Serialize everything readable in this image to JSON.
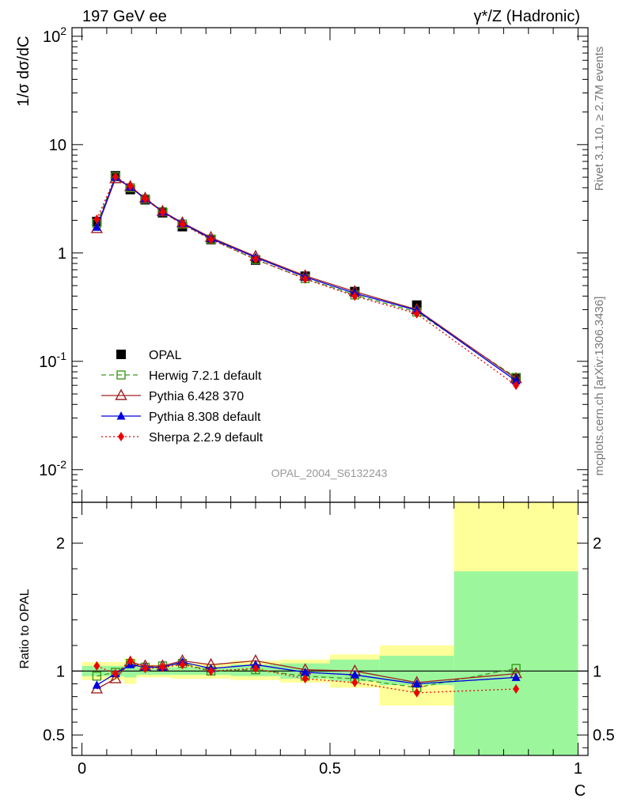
{
  "header": {
    "left": "197 GeV ee",
    "right": "γ*/Z (Hadronic)",
    "side_top": "Rivet 3.1.10, ≥ 2.7M events",
    "side_bottom": "mcplots.cern.ch [arXiv:1306.3436]",
    "analysis": "OPAL_2004_S6132243"
  },
  "colors": {
    "opal": "#000000",
    "herwig": "#3a9a1a",
    "pythia6": "#a02020",
    "pythia8": "#0000dd",
    "sherpa": "#ee0000",
    "band_inner": "#9cf79c",
    "band_outer": "#ffff99"
  },
  "chart_data": [
    {
      "type": "line",
      "scale": "log",
      "ylabel": "1/σ dσ/dC",
      "ylim": [
        0.005,
        120
      ],
      "xlim": [
        -0.02,
        1.02
      ],
      "y_ticks": [
        "10^-2",
        "10^-1",
        "1",
        "10",
        "10^2"
      ],
      "x": [
        0.03,
        0.0675,
        0.0975,
        0.1275,
        0.1625,
        0.2025,
        0.26,
        0.35,
        0.45,
        0.55,
        0.675,
        0.875
      ],
      "legend_position": "bottom-left",
      "series": [
        {
          "name": "OPAL",
          "marker": "square-filled",
          "values": [
            1.95,
            5.15,
            3.85,
            3.1,
            2.35,
            1.75,
            1.33,
            0.86,
            0.61,
            0.44,
            0.33,
            0.07
          ]
        },
        {
          "name": "Herwig 7.2.1 default",
          "marker": "square-open",
          "style": "dashed",
          "values": [
            1.88,
            5.05,
            4.0,
            3.15,
            2.4,
            1.85,
            1.34,
            0.87,
            0.58,
            0.41,
            0.285,
            0.071
          ]
        },
        {
          "name": "Pythia 6.428 370",
          "marker": "triangle-open",
          "style": "solid",
          "values": [
            1.68,
            4.85,
            4.1,
            3.2,
            2.42,
            1.9,
            1.39,
            0.93,
            0.615,
            0.44,
            0.3,
            0.069
          ]
        },
        {
          "name": "Pythia 8.308 default",
          "marker": "triangle-filled",
          "style": "solid",
          "values": [
            1.73,
            5.0,
            4.05,
            3.15,
            2.4,
            1.88,
            1.36,
            0.91,
            0.6,
            0.425,
            0.295,
            0.066
          ]
        },
        {
          "name": "Sherpa 2.2.9 default",
          "marker": "diamond-filled",
          "style": "dotted",
          "values": [
            2.05,
            5.05,
            4.15,
            3.15,
            2.38,
            1.84,
            1.33,
            0.875,
            0.575,
            0.4,
            0.275,
            0.06
          ]
        }
      ]
    },
    {
      "type": "line",
      "ylabel": "Ratio to OPAL",
      "xlabel": "C",
      "ylim": [
        0.34,
        2.32
      ],
      "xlim": [
        -0.02,
        1.02
      ],
      "x_ticks": [
        "0",
        "0.5",
        "1"
      ],
      "y_ticks": [
        "0.5",
        "1",
        "2"
      ],
      "reference_line": 1,
      "bands": {
        "edges": [
          0,
          0.05,
          0.085,
          0.11,
          0.145,
          0.18,
          0.225,
          0.3,
          0.4,
          0.5,
          0.6,
          0.75,
          1.0
        ],
        "inner": [
          [
            0.96,
            1.04
          ],
          [
            0.96,
            1.04
          ],
          [
            0.95,
            1.06
          ],
          [
            0.97,
            1.03
          ],
          [
            0.97,
            1.03
          ],
          [
            0.97,
            1.03
          ],
          [
            0.97,
            1.03
          ],
          [
            0.96,
            1.05
          ],
          [
            0.94,
            1.06
          ],
          [
            0.92,
            1.09
          ],
          [
            0.89,
            1.12
          ],
          [
            0.34,
            1.78
          ]
        ],
        "outer": [
          [
            0.93,
            1.07
          ],
          [
            0.93,
            1.07
          ],
          [
            0.9,
            1.1
          ],
          [
            0.95,
            1.05
          ],
          [
            0.95,
            1.05
          ],
          [
            0.94,
            1.06
          ],
          [
            0.94,
            1.06
          ],
          [
            0.93,
            1.08
          ],
          [
            0.91,
            1.09
          ],
          [
            0.87,
            1.13
          ],
          [
            0.73,
            1.2
          ],
          [
            0.34,
            2.32
          ]
        ]
      },
      "series": [
        {
          "name": "Herwig 7.2.1 default",
          "values": [
            0.96,
            0.99,
            1.06,
            1.03,
            1.04,
            1.06,
            1.0,
            1.01,
            0.96,
            0.94,
            0.87,
            1.02
          ]
        },
        {
          "name": "Pythia 6.428 370",
          "values": [
            0.86,
            0.94,
            1.07,
            1.04,
            1.04,
            1.08,
            1.05,
            1.08,
            1.01,
            1.0,
            0.91,
            0.98
          ]
        },
        {
          "name": "Pythia 8.308 default",
          "values": [
            0.89,
            0.98,
            1.05,
            1.03,
            1.03,
            1.07,
            1.02,
            1.05,
            0.99,
            0.97,
            0.9,
            0.95
          ]
        },
        {
          "name": "Sherpa 2.2.9 default",
          "values": [
            1.04,
            0.98,
            1.08,
            1.02,
            1.03,
            1.05,
            1.0,
            1.02,
            0.94,
            0.91,
            0.83,
            0.86
          ]
        }
      ]
    }
  ]
}
